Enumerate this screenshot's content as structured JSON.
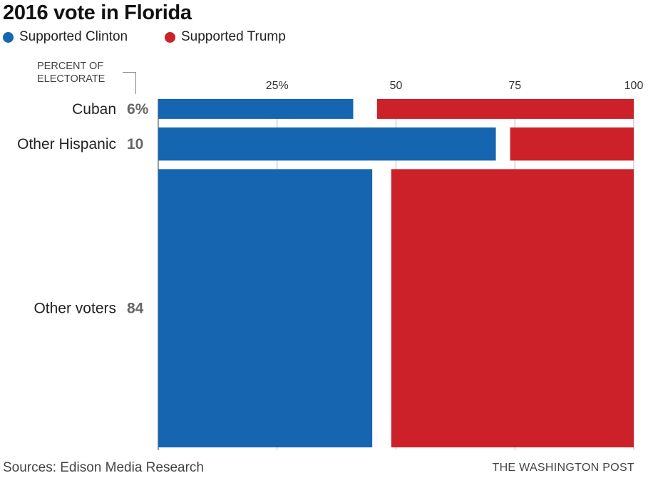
{
  "title": "2016 vote in Florida",
  "legend": [
    {
      "label": "Supported Clinton",
      "color": "#1565b0"
    },
    {
      "label": "Supported Trump",
      "color": "#cc2129"
    }
  ],
  "share_heading": [
    "PERCENT OF",
    "ELECTORATE"
  ],
  "footer": {
    "source": "Sources: Edison Media Research",
    "credit": "THE WASHINGTON POST"
  },
  "chart_data": {
    "type": "bar",
    "subtype": "marimekko",
    "title": "2016 vote in Florida",
    "xlim": [
      0,
      100
    ],
    "x_ticks": [
      "25%",
      "50",
      "75",
      "100"
    ],
    "x_tick_values": [
      25,
      50,
      75,
      100
    ],
    "categories": [
      "Cuban",
      "Other Hispanic",
      "Other voters"
    ],
    "share_labels": [
      "6%",
      "10",
      "84"
    ],
    "share_of_electorate": [
      6,
      10,
      84
    ],
    "series": [
      {
        "name": "Supported Clinton",
        "color": "#1565b0",
        "values": [
          41,
          71,
          45
        ]
      },
      {
        "name": "Supported Trump",
        "color": "#cc2129",
        "values": [
          54,
          26,
          51
        ]
      }
    ],
    "grid": true,
    "legend_position": "top-left"
  }
}
